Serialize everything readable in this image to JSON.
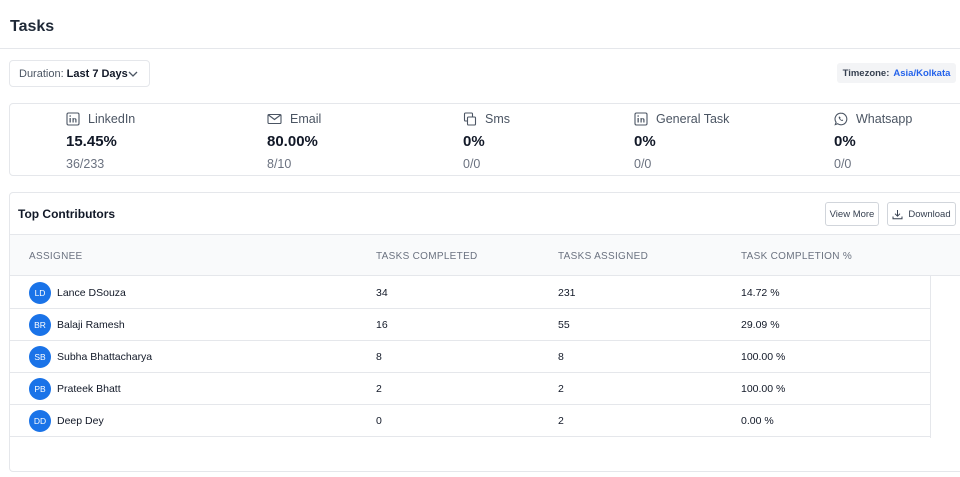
{
  "header": {
    "title": "Tasks"
  },
  "filters": {
    "duration_label": "Duration:",
    "duration_value": "Last 7 Days",
    "timezone_label": "Timezone:",
    "timezone_value": "Asia/Kolkata"
  },
  "stats": [
    {
      "label": "LinkedIn",
      "icon": "linkedin-icon",
      "percent": "15.45%",
      "ratio": "36/233"
    },
    {
      "label": "Email",
      "icon": "email-icon",
      "percent": "80.00%",
      "ratio": "8/10"
    },
    {
      "label": "Sms",
      "icon": "sms-icon",
      "percent": "0%",
      "ratio": "0/0"
    },
    {
      "label": "General Task",
      "icon": "linkedin-icon",
      "percent": "0%",
      "ratio": "0/0"
    },
    {
      "label": "Whatsapp",
      "icon": "whatsapp-icon",
      "percent": "0%",
      "ratio": "0/0"
    }
  ],
  "contributors": {
    "title": "Top Contributors",
    "view_more_label": "View More",
    "download_label": "Download",
    "columns": [
      "ASSIGNEE",
      "TASKS COMPLETED",
      "TASKS ASSIGNED",
      "TASK COMPLETION %"
    ],
    "rows": [
      {
        "initials": "LD",
        "name": "Lance DSouza",
        "completed": "34",
        "assigned": "231",
        "completion": "14.72 %"
      },
      {
        "initials": "BR",
        "name": "Balaji Ramesh",
        "completed": "16",
        "assigned": "55",
        "completion": "29.09 %"
      },
      {
        "initials": "SB",
        "name": "Subha Bhattacharya",
        "completed": "8",
        "assigned": "8",
        "completion": "100.00 %"
      },
      {
        "initials": "PB",
        "name": "Prateek Bhatt",
        "completed": "2",
        "assigned": "2",
        "completion": "100.00 %"
      },
      {
        "initials": "DD",
        "name": "Deep Dey",
        "completed": "0",
        "assigned": "2",
        "completion": "0.00 %"
      }
    ]
  },
  "colors": {
    "accent": "#1a73e8",
    "link": "#2563eb"
  }
}
